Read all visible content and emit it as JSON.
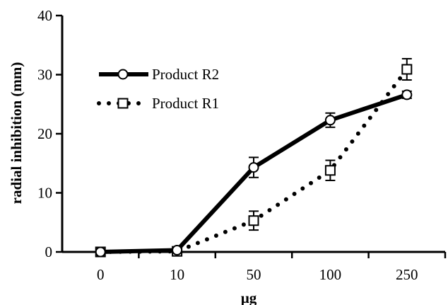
{
  "chart_data": {
    "type": "line",
    "categories": [
      "0",
      "10",
      "50",
      "100",
      "250"
    ],
    "xlabel": "µg",
    "ylabel": "radial inhibition (mm)",
    "ylim": [
      0,
      40
    ],
    "yticks": [
      "0",
      "10",
      "20",
      "30",
      "40"
    ],
    "grid": false,
    "legend_position": "top-left",
    "series": [
      {
        "name": "Product R2",
        "values": [
          0,
          0.3,
          14.3,
          22.3,
          26.6
        ],
        "errors": [
          0,
          0.3,
          1.7,
          1.2,
          0.6
        ],
        "line_style": "solid",
        "marker": "circle",
        "color": "#000000"
      },
      {
        "name": "Product R1",
        "values": [
          0,
          0.1,
          5.3,
          13.8,
          30.9
        ],
        "errors": [
          0,
          0.2,
          1.6,
          1.7,
          1.8
        ],
        "line_style": "dotted",
        "marker": "square",
        "color": "#000000"
      }
    ]
  }
}
